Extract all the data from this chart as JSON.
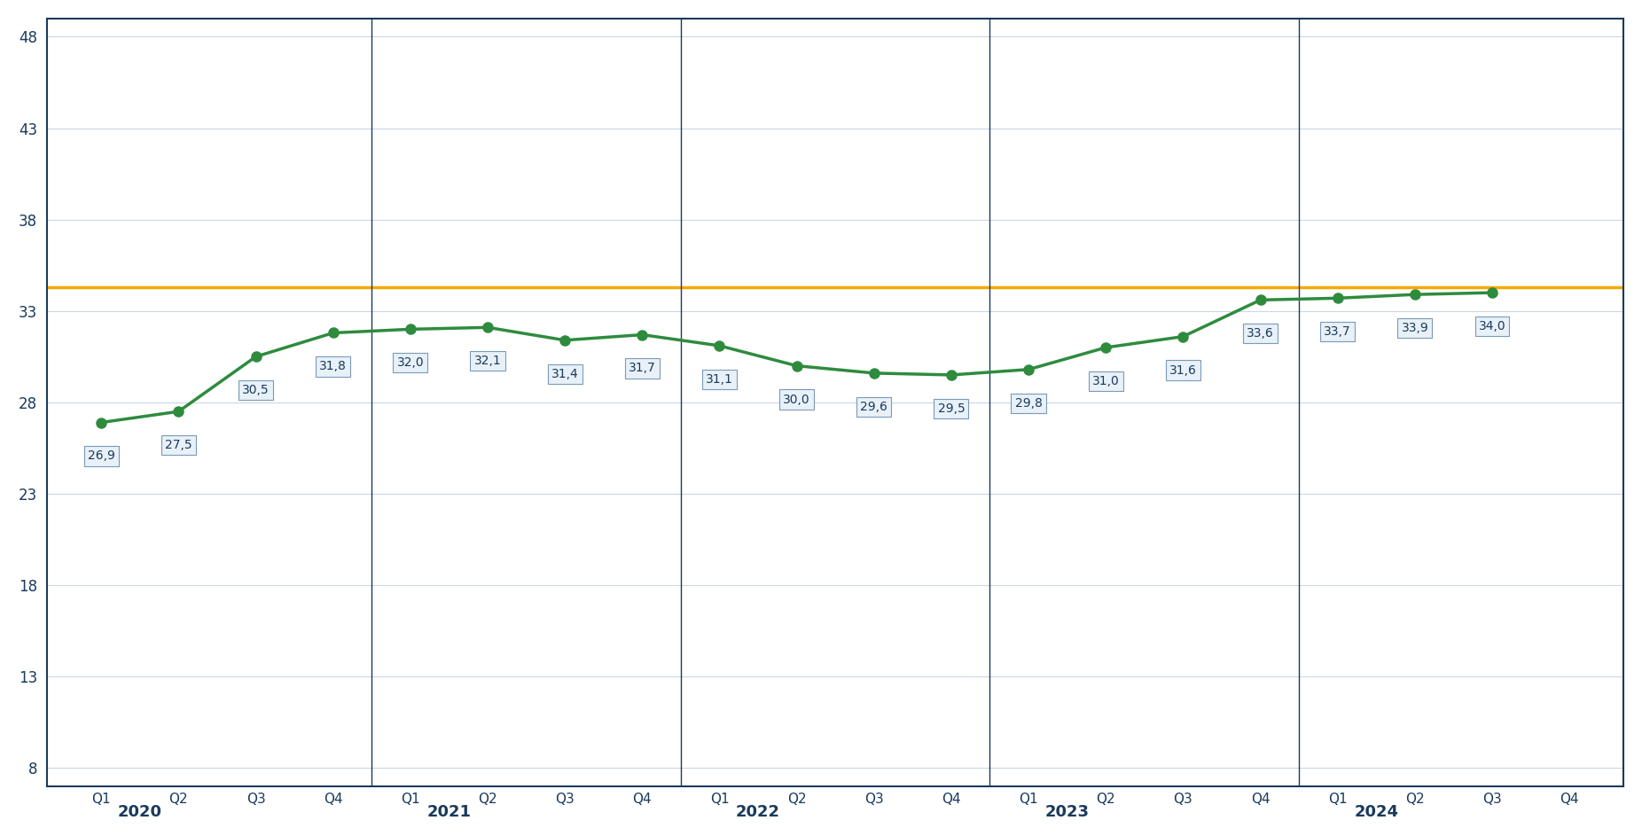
{
  "values": [
    26.9,
    27.5,
    30.5,
    31.8,
    32.0,
    32.1,
    31.4,
    31.7,
    31.1,
    30.0,
    29.6,
    29.5,
    29.8,
    31.0,
    31.6,
    33.6,
    33.7,
    33.9,
    34.0,
    null
  ],
  "labels": [
    "26,9",
    "27,5",
    "30,5",
    "31,8",
    "32,0",
    "32,1",
    "31,4",
    "31,7",
    "31,1",
    "30,0",
    "29,6",
    "29,5",
    "29,8",
    "31,0",
    "31,6",
    "33,6",
    "33,7",
    "33,9",
    "34,0",
    ""
  ],
  "x_quarters": [
    "Q1",
    "Q2",
    "Q3",
    "Q4",
    "Q1",
    "Q2",
    "Q3",
    "Q4",
    "Q1",
    "Q2",
    "Q3",
    "Q4",
    "Q1",
    "Q2",
    "Q3",
    "Q4",
    "Q1",
    "Q2",
    "Q3",
    "Q4"
  ],
  "years": [
    "2020",
    "2021",
    "2022",
    "2023",
    "2024"
  ],
  "year_positions": [
    1.5,
    5.5,
    9.5,
    13.5,
    17.5
  ],
  "yticks": [
    8,
    13,
    18,
    23,
    28,
    33,
    38,
    43,
    48
  ],
  "ylim": [
    7,
    49
  ],
  "horizontal_line_y": 34.3,
  "line_color": "#2e8b3e",
  "hline_color": "#f5a800",
  "background_color": "#ffffff",
  "border_color": "#1a3a5c",
  "grid_color": "#c8d8e8",
  "label_box_color": "#e8f0f8",
  "label_box_edge": "#7a9ab8",
  "axis_label_color": "#1a3a5c",
  "year_label_color": "#1a3a5c",
  "marker_size": 8,
  "line_width": 2.5
}
